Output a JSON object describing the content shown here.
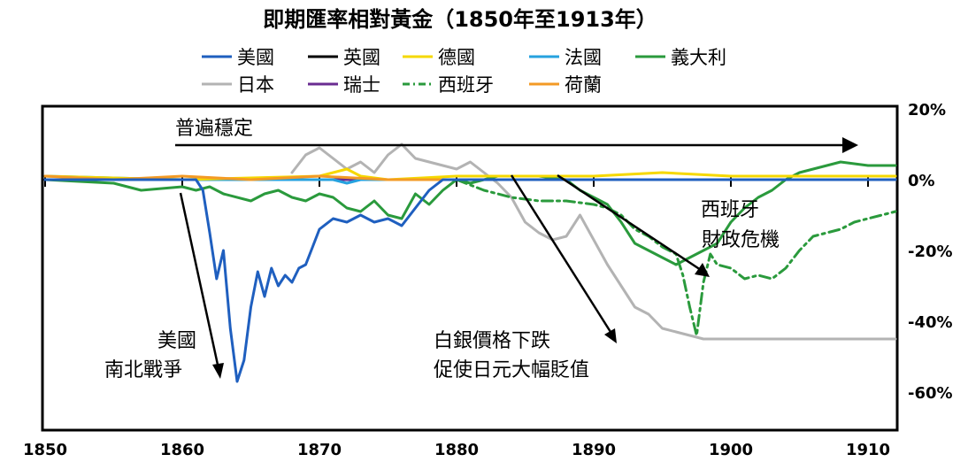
{
  "chart_data": {
    "type": "line",
    "title": "即期匯率相對黃金（1850年至1913年）",
    "xlabel": "",
    "ylabel": "",
    "xlim": [
      1850,
      1912
    ],
    "ylim": [
      -70,
      20
    ],
    "x_ticks": [
      1850,
      1860,
      1870,
      1880,
      1890,
      1900,
      1910
    ],
    "x_tick_labels": [
      "1850",
      "1860",
      "1870",
      "1880",
      "1890",
      "1900",
      "1910"
    ],
    "y_ticks": [
      20,
      0,
      -20,
      -40,
      -60
    ],
    "y_tick_labels": [
      "20%",
      "0%",
      "-20%",
      "-40%",
      "-60%"
    ],
    "legend_position": "top",
    "series": [
      {
        "name": "美國",
        "color": "#1f5fbf",
        "dash": "solid",
        "x": [
          1850,
          1855,
          1860,
          1861,
          1861.5,
          1862,
          1862.5,
          1863,
          1863.5,
          1864,
          1864.5,
          1865,
          1865.5,
          1866,
          1866.5,
          1867,
          1867.5,
          1868,
          1868.5,
          1869,
          1869.5,
          1870,
          1871,
          1872,
          1873,
          1874,
          1875,
          1876,
          1877,
          1878,
          1879,
          1880,
          1890,
          1900,
          1912
        ],
        "y": [
          0,
          0,
          0,
          0,
          -3,
          -15,
          -28,
          -20,
          -42,
          -57,
          -51,
          -36,
          -26,
          -33,
          -25,
          -30,
          -27,
          -29,
          -25,
          -24,
          -19,
          -14,
          -11,
          -12,
          -10,
          -12,
          -11,
          -13,
          -8,
          -3,
          0,
          0,
          0,
          0,
          0
        ]
      },
      {
        "name": "英國",
        "color": "#000000",
        "dash": "solid",
        "x": [
          1850,
          1860,
          1870,
          1880,
          1890,
          1900,
          1912
        ],
        "y": [
          0,
          0,
          0,
          0,
          0,
          0,
          0
        ]
      },
      {
        "name": "德國",
        "color": "#f5d800",
        "dash": "solid",
        "x": [
          1850,
          1860,
          1870,
          1871,
          1872,
          1873,
          1875,
          1880,
          1890,
          1895,
          1900,
          1912
        ],
        "y": [
          1,
          0,
          1,
          2,
          3,
          1,
          0,
          1,
          1,
          2,
          1,
          1
        ]
      },
      {
        "name": "法國",
        "color": "#26a2df",
        "dash": "solid",
        "x": [
          1850,
          1860,
          1870,
          1871,
          1872,
          1873,
          1880,
          1890,
          1900,
          1912
        ],
        "y": [
          1,
          0,
          0,
          0,
          -1,
          0,
          0,
          0,
          0,
          0
        ]
      },
      {
        "name": "義大利",
        "color": "#2a9a3c",
        "dash": "solid",
        "x": [
          1850,
          1855,
          1857,
          1860,
          1861,
          1862,
          1863,
          1865,
          1866,
          1867,
          1868,
          1869,
          1870,
          1871,
          1872,
          1873,
          1874,
          1875,
          1876,
          1877,
          1878,
          1879,
          1880,
          1881,
          1882,
          1883,
          1884,
          1886,
          1888,
          1889,
          1890,
          1891,
          1892,
          1893,
          1894,
          1895,
          1896,
          1897,
          1898,
          1899,
          1900,
          1901,
          1902,
          1903,
          1904,
          1905,
          1906,
          1908,
          1910,
          1912
        ],
        "y": [
          0,
          -1,
          -3,
          -2,
          -3,
          -2,
          -4,
          -6,
          -4,
          -3,
          -5,
          -6,
          -4,
          -5,
          -8,
          -9,
          -6,
          -10,
          -11,
          -4,
          -7,
          -3,
          0,
          -1,
          0,
          1,
          1,
          1,
          0,
          -3,
          -5,
          -7,
          -12,
          -18,
          -20,
          -22,
          -24,
          -22,
          -20,
          -18,
          -12,
          -8,
          -5,
          -3,
          0,
          2,
          3,
          5,
          4,
          4
        ]
      },
      {
        "name": "日本",
        "color": "#b3b3b3",
        "dash": "solid",
        "x": [
          1868,
          1869,
          1870,
          1871,
          1872,
          1873,
          1874,
          1875,
          1876,
          1877,
          1878,
          1879,
          1880,
          1881,
          1882,
          1883,
          1884,
          1885,
          1886,
          1887,
          1888,
          1889,
          1890,
          1891,
          1892,
          1893,
          1894,
          1895,
          1896,
          1897,
          1898,
          1899,
          1900,
          1905,
          1910,
          1912
        ],
        "y": [
          2,
          7,
          9,
          6,
          3,
          5,
          2,
          7,
          10,
          6,
          5,
          4,
          3,
          5,
          2,
          -1,
          -5,
          -12,
          -15,
          -17,
          -16,
          -10,
          -17,
          -24,
          -30,
          -36,
          -38,
          -42,
          -43,
          -44,
          -45,
          -45,
          -45,
          -45,
          -45,
          -45
        ]
      },
      {
        "name": "瑞士",
        "color": "#6a2c91",
        "dash": "solid",
        "x": [
          1850,
          1860,
          1870,
          1880,
          1890,
          1900,
          1912
        ],
        "y": [
          0,
          0,
          0,
          0,
          0,
          0,
          0
        ]
      },
      {
        "name": "西班牙",
        "color": "#2a9a3c",
        "dash": "dashdot",
        "x": [
          1880,
          1882,
          1884,
          1886,
          1888,
          1890,
          1891,
          1892,
          1893,
          1894,
          1895,
          1896,
          1896.5,
          1897,
          1897.5,
          1898,
          1898.5,
          1899,
          1900,
          1901,
          1902,
          1903,
          1904,
          1905,
          1906,
          1907,
          1908,
          1909,
          1910,
          1911,
          1912
        ],
        "y": [
          0,
          -3,
          -5,
          -6,
          -6,
          -7,
          -8,
          -10,
          -14,
          -16,
          -19,
          -21,
          -27,
          -36,
          -44,
          -29,
          -21,
          -24,
          -25,
          -28,
          -27,
          -28,
          -25,
          -20,
          -16,
          -15,
          -14,
          -12,
          -11,
          -10,
          -9
        ]
      },
      {
        "name": "荷蘭",
        "color": "#f39a25",
        "dash": "solid",
        "x": [
          1850,
          1855,
          1860,
          1865,
          1870,
          1875,
          1880,
          1885,
          1890,
          1900,
          1912
        ],
        "y": [
          1,
          0,
          1,
          0,
          1,
          0,
          0,
          0,
          0,
          0,
          0
        ]
      }
    ],
    "annotations": [
      {
        "text": "普遍穩定"
      },
      {
        "text_lines": [
          "西班牙",
          "財政危機"
        ]
      },
      {
        "text_lines": [
          "白銀價格下跌",
          "促使日元大幅貶值"
        ]
      },
      {
        "text_lines": [
          "美國",
          "南北戰爭"
        ]
      }
    ]
  }
}
